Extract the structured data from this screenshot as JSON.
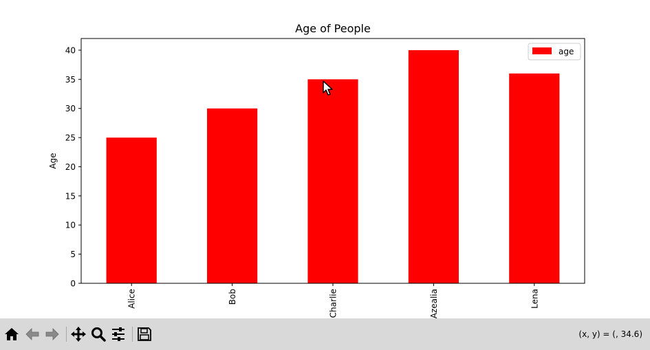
{
  "chart_data": {
    "type": "bar",
    "title": "Age of People",
    "xlabel": "",
    "ylabel": "Age",
    "categories": [
      "Alice",
      "Bob",
      "Charlie",
      "Azealia",
      "Lena"
    ],
    "series": [
      {
        "name": "age",
        "values": [
          25,
          30,
          35,
          40,
          36
        ],
        "color": "#ff0000"
      }
    ],
    "ylim": [
      0,
      42
    ],
    "yticks": [
      0,
      5,
      10,
      15,
      20,
      25,
      30,
      35,
      40
    ],
    "legend_position": "top-right",
    "grid": false
  },
  "toolbar": {
    "buttons": [
      {
        "name": "home-button",
        "icon": "home-icon"
      },
      {
        "name": "back-button",
        "icon": "arrow-left-icon"
      },
      {
        "name": "forward-button",
        "icon": "arrow-right-icon"
      },
      {
        "name": "pan-button",
        "icon": "move-icon"
      },
      {
        "name": "zoom-button",
        "icon": "magnifier-icon"
      },
      {
        "name": "configure-subplots-button",
        "icon": "sliders-icon"
      },
      {
        "name": "save-button",
        "icon": "floppy-disk-icon"
      }
    ],
    "coordinates": "(x, y) = (, 34.6)"
  },
  "colors": {
    "bar": "#ff0000",
    "toolbar_bg": "#d9d9d9",
    "axes": "#000000"
  }
}
